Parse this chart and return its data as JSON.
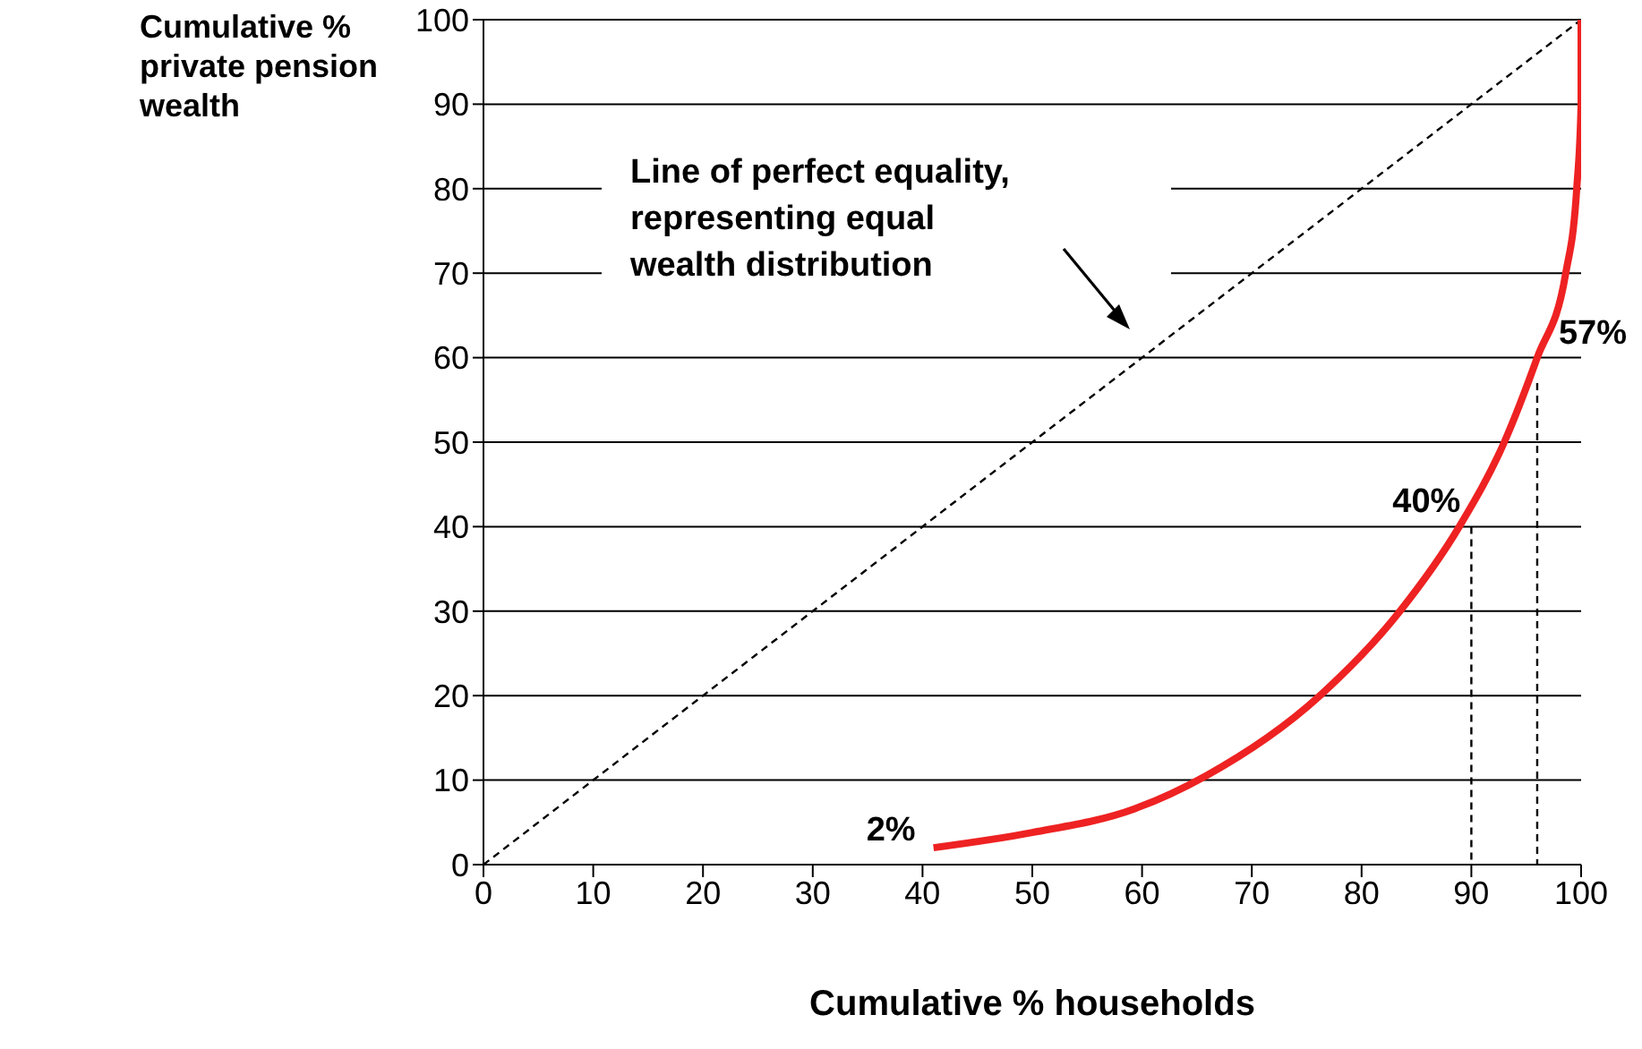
{
  "chart_data": {
    "type": "line",
    "xlabel": "Cumulative % households",
    "ylabel": "Cumulative % private pension wealth",
    "xlim": [
      0,
      100
    ],
    "ylim": [
      0,
      100
    ],
    "xticks": [
      0,
      10,
      20,
      30,
      40,
      50,
      60,
      70,
      80,
      90,
      100
    ],
    "yticks": [
      0,
      10,
      20,
      30,
      40,
      50,
      60,
      70,
      80,
      90,
      100
    ],
    "grid": "y",
    "marker": "none",
    "series": [
      {
        "color": "#000000",
        "line_style": "dashed",
        "x": [
          0,
          100
        ],
        "values": [
          0,
          100
        ]
      },
      {
        "color": "#ee2222",
        "line_style": "solid",
        "x": [
          41,
          50,
          59.3,
          65.8,
          76.2,
          83.5,
          88.9,
          93,
          96,
          98.6,
          99.6,
          100,
          100
        ],
        "values": [
          2,
          3.8,
          6.6,
          10.5,
          20,
          30,
          40,
          50,
          60,
          70,
          80,
          90,
          100
        ]
      },
      {
        "color": "#000000",
        "line_style": "dashed",
        "x": [
          90,
          90
        ],
        "values": [
          40,
          0
        ]
      },
      {
        "color": "#000000",
        "line_style": "dashed",
        "x": [
          96,
          96
        ],
        "values": [
          57,
          0
        ]
      }
    ],
    "annotations": [
      "Line of perfect equality,\nrepresenting equal\nwealth distribution",
      {
        "text": "2%",
        "x": 41,
        "y": 2
      },
      {
        "text": "40%",
        "x": 90,
        "y": 40
      },
      {
        "text": "57%",
        "x": 96,
        "y": 57
      }
    ]
  }
}
